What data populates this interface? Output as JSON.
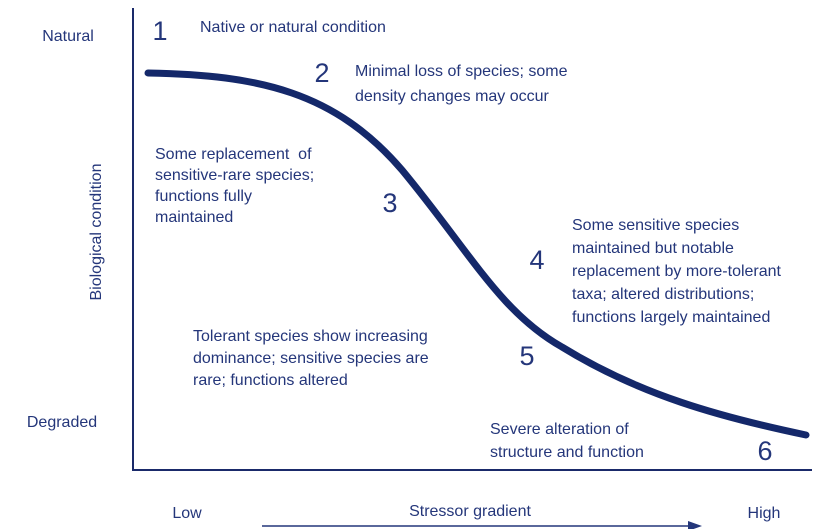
{
  "y_axis": {
    "top": "Natural",
    "bottom": "Degraded",
    "title": "Biological condition"
  },
  "x_axis": {
    "left": "Low",
    "title": "Stressor gradient",
    "right": "High"
  },
  "tiers": [
    {
      "number": "1",
      "lines": [
        "Native or natural condition"
      ]
    },
    {
      "number": "2",
      "lines": [
        "Minimal loss of species; some",
        "density changes may occur"
      ]
    },
    {
      "number": "3",
      "lines": [
        "Some replacement  of",
        "sensitive-rare species;",
        "functions fully",
        "maintained"
      ]
    },
    {
      "number": "4",
      "lines": [
        "Some sensitive species",
        "maintained but notable",
        "replacement by more-tolerant",
        "taxa; altered distributions;",
        "functions largely maintained"
      ]
    },
    {
      "number": "5",
      "lines": [
        "Tolerant species show increasing",
        "dominance; sensitive species are",
        "rare; functions altered"
      ]
    },
    {
      "number": "6",
      "lines": [
        "Severe alteration of",
        "structure and function"
      ]
    }
  ]
}
